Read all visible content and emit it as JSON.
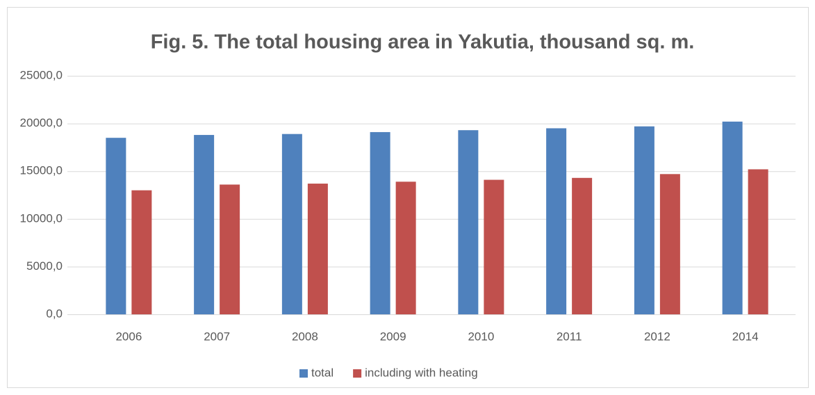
{
  "chart_data": {
    "type": "bar",
    "title": "Fig. 5. The total housing area in Yakutia, thousand sq. m.",
    "categories": [
      "2006",
      "2007",
      "2008",
      "2009",
      "2010",
      "2011",
      "2012",
      "2014"
    ],
    "series": [
      {
        "name": "total",
        "color": "#4f81bd",
        "values": [
          18500,
          18800,
          18900,
          19100,
          19300,
          19500,
          19700,
          20200
        ]
      },
      {
        "name": "including with heating",
        "color": "#c0504d",
        "values": [
          13000,
          13600,
          13700,
          13900,
          14100,
          14300,
          14700,
          15200
        ]
      }
    ],
    "ylim": [
      0,
      25000
    ],
    "yticks": [
      {
        "value": 0,
        "label": "0,0"
      },
      {
        "value": 5000,
        "label": "5000,0"
      },
      {
        "value": 10000,
        "label": "10000,0"
      },
      {
        "value": 15000,
        "label": "15000,0"
      },
      {
        "value": 20000,
        "label": "20000,0"
      },
      {
        "value": 25000,
        "label": "25000,0"
      }
    ],
    "grid": true,
    "legend": "bottom"
  }
}
